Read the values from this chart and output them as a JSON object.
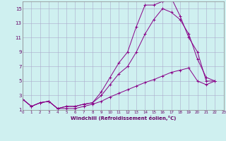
{
  "xlabel": "Windchill (Refroidissement éolien,°C)",
  "background_color": "#cff0f0",
  "grid_color": "#aaaacc",
  "line_color": "#880088",
  "xlim": [
    0,
    23
  ],
  "ylim": [
    1,
    16
  ],
  "xticks": [
    0,
    1,
    2,
    3,
    4,
    5,
    6,
    7,
    8,
    9,
    10,
    11,
    12,
    13,
    14,
    15,
    16,
    17,
    18,
    19,
    20,
    21,
    22,
    23
  ],
  "yticks": [
    1,
    3,
    5,
    7,
    9,
    11,
    13,
    15
  ],
  "series": [
    {
      "x": [
        0,
        1,
        2,
        3,
        4,
        5,
        6,
        7,
        8,
        9,
        10,
        11,
        12,
        13,
        14,
        15,
        16,
        17,
        18,
        19,
        20,
        21,
        22,
        23
      ],
      "y": [
        2.5,
        1.5,
        2.0,
        2.2,
        1.2,
        1.5,
        1.5,
        1.8,
        2.0,
        3.5,
        5.5,
        7.5,
        9.0,
        12.5,
        15.5,
        15.5,
        16.0,
        16.5,
        14.0,
        11.0,
        9.0,
        5.0,
        5.0,
        null
      ]
    },
    {
      "x": [
        0,
        1,
        2,
        3,
        4,
        5,
        6,
        7,
        8,
        9,
        10,
        11,
        12,
        13,
        14,
        15,
        16,
        17,
        18,
        19,
        20,
        21,
        22,
        23
      ],
      "y": [
        2.5,
        1.5,
        2.0,
        2.2,
        1.2,
        1.5,
        1.5,
        1.8,
        2.0,
        3.0,
        4.5,
        6.0,
        7.0,
        9.0,
        11.5,
        13.5,
        15.0,
        14.5,
        13.5,
        11.5,
        8.0,
        5.5,
        5.0,
        null
      ]
    },
    {
      "x": [
        0,
        1,
        2,
        3,
        4,
        5,
        6,
        7,
        8,
        9,
        10,
        11,
        12,
        13,
        14,
        15,
        16,
        17,
        18,
        19,
        20,
        21,
        22,
        23
      ],
      "y": [
        2.5,
        1.5,
        2.0,
        2.2,
        1.2,
        1.2,
        1.2,
        1.5,
        1.8,
        2.2,
        2.8,
        3.3,
        3.8,
        4.3,
        4.8,
        5.2,
        5.7,
        6.2,
        6.5,
        6.8,
        5.0,
        4.5,
        5.0,
        null
      ]
    }
  ]
}
